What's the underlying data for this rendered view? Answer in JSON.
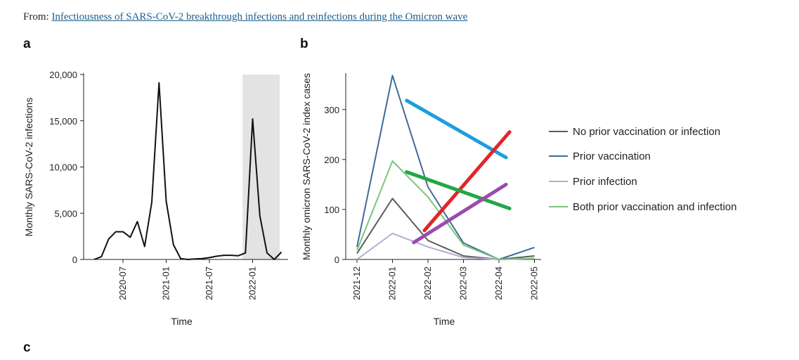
{
  "header": {
    "from_label": "From:",
    "article_link": "Infectiousness of SARS-CoV-2 breakthrough infections and reinfections during the Omicron wave"
  },
  "panels": {
    "a": "a",
    "b": "b",
    "c": "c"
  },
  "colors": {
    "line_a": "#111111",
    "shade": "#e3e3e3",
    "no_prior": "#5c5c5c",
    "prior_vacc": "#3e6b98",
    "prior_inf": "#b9a8d4",
    "both": "#7cc47f",
    "overlay_blue": "#1a9fdc",
    "overlay_red": "#e0262a",
    "overlay_green": "#22a746",
    "overlay_purple": "#9b4bab"
  },
  "chart_data": [
    {
      "type": "line",
      "panel": "a",
      "xlabel": "Time",
      "ylabel": "Monthly SARS-CoV-2 infections",
      "ylim": [
        0,
        20000
      ],
      "yticks": [
        0,
        5000,
        10000,
        15000,
        20000
      ],
      "ytick_labels": [
        "0",
        "5,000",
        "10,000",
        "15,000",
        "20,000"
      ],
      "xticks": [
        "2020-07",
        "2021-01",
        "2021-07",
        "2022-01"
      ],
      "shaded_region": {
        "start": "2021-12",
        "end": "2022-05"
      },
      "series": [
        {
          "x": [
            "2020-03",
            "2020-04",
            "2020-05",
            "2020-06",
            "2020-07",
            "2020-08",
            "2020-09",
            "2020-10",
            "2020-11",
            "2020-12",
            "2021-01",
            "2021-02",
            "2021-03",
            "2021-04",
            "2021-05",
            "2021-06",
            "2021-07",
            "2021-08",
            "2021-09",
            "2021-10",
            "2021-11",
            "2021-12",
            "2022-01",
            "2022-02",
            "2022-03",
            "2022-04",
            "2022-05"
          ],
          "values": [
            0,
            300,
            2200,
            3000,
            3000,
            2400,
            4100,
            1400,
            6200,
            19100,
            6300,
            1600,
            100,
            0,
            50,
            100,
            200,
            350,
            450,
            450,
            400,
            700,
            15200,
            4700,
            700,
            0,
            800
          ]
        }
      ]
    },
    {
      "type": "line",
      "panel": "b",
      "xlabel": "Time",
      "ylabel": "Monthly omicron SARS-CoV-2 index cases",
      "ylim": [
        0,
        370
      ],
      "yticks": [
        0,
        100,
        200,
        300
      ],
      "ytick_labels": [
        "0",
        "100",
        "200",
        "300"
      ],
      "categories": [
        "2021-12",
        "2022-01",
        "2022-02",
        "2022-03",
        "2022-04",
        "2022-05"
      ],
      "legend_position": "right",
      "series": [
        {
          "name": "No prior vaccination or infection",
          "color_key": "no_prior",
          "values": [
            12,
            122,
            38,
            7,
            0,
            7
          ]
        },
        {
          "name": "Prior vaccination",
          "color_key": "prior_vacc",
          "values": [
            25,
            368,
            145,
            33,
            0,
            24
          ]
        },
        {
          "name": "Prior infection",
          "color_key": "prior_inf",
          "values": [
            0,
            52,
            25,
            4,
            0,
            2
          ]
        },
        {
          "name": "Both prior vaccination and infection",
          "color_key": "both",
          "values": [
            18,
            197,
            125,
            29,
            0,
            2
          ]
        }
      ],
      "overlay_lines": [
        {
          "color_key": "overlay_blue",
          "x": [
            1.4,
            4.2
          ],
          "y": [
            318,
            204
          ]
        },
        {
          "color_key": "overlay_red",
          "x": [
            1.9,
            4.3
          ],
          "y": [
            58,
            255
          ]
        },
        {
          "color_key": "overlay_green",
          "x": [
            1.4,
            4.3
          ],
          "y": [
            175,
            102
          ]
        },
        {
          "color_key": "overlay_purple",
          "x": [
            1.6,
            4.2
          ],
          "y": [
            34,
            150
          ]
        }
      ]
    }
  ]
}
